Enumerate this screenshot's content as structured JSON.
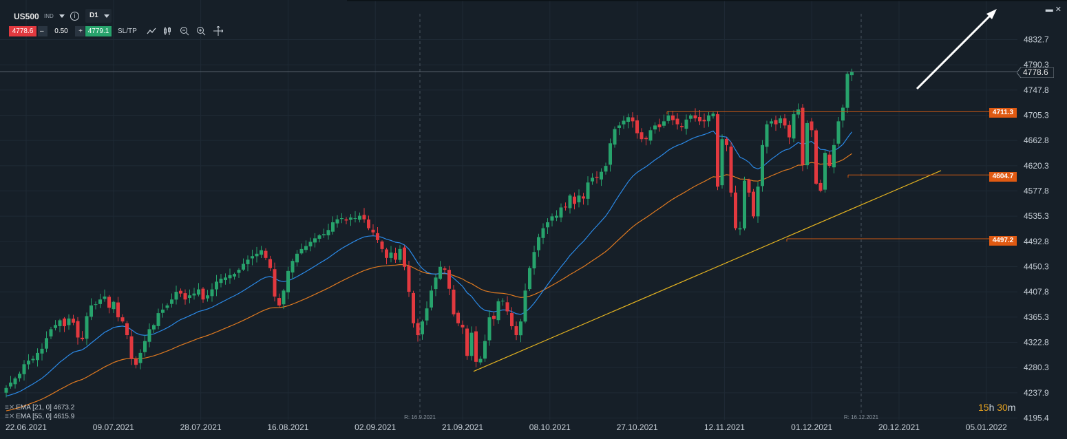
{
  "toolbar": {
    "symbol": "US500",
    "market": "IND",
    "info_icon": "info-icon",
    "timeframe": "D1",
    "sell_price": "4778.6",
    "minus": "–",
    "quantity": "0.50",
    "plus": "+",
    "buy_price": "4779.1",
    "sltp_label": "SL/TP",
    "tools": [
      "line-chart-icon",
      "candles-icon",
      "zoom-out-icon",
      "zoom-in-icon",
      "crosshair-icon"
    ]
  },
  "window_controls": {
    "collapse": "▬",
    "close": "✕"
  },
  "current_price": "4778.6",
  "levels": [
    {
      "label": "4711.3",
      "value": 4711.3
    },
    {
      "label": "4604.7",
      "value": 4604.7
    },
    {
      "label": "4497.2",
      "value": 4497.2
    }
  ],
  "indicators": [
    {
      "label": "EMA [21, 0] 4673.2",
      "color": "#2b8ae8"
    },
    {
      "label": "EMA [55, 0] 4615.9",
      "color": "#e07a20"
    }
  ],
  "countdown": {
    "hours": "15",
    "h": "h",
    "minutes": "30",
    "m": "m"
  },
  "chart_data": {
    "type": "candlestick",
    "symbol": "US500",
    "ylim": [
      4195.4,
      4832.7
    ],
    "y_ticks": [
      "4832.7",
      "4790.3",
      "4747.8",
      "4705.3",
      "4662.8",
      "4620.3",
      "4577.8",
      "4535.3",
      "4492.8",
      "4450.3",
      "4407.8",
      "4365.3",
      "4322.8",
      "4280.3",
      "4237.9",
      "4195.4"
    ],
    "x_ticks": [
      "22.06.2021",
      "09.07.2021",
      "28.07.2021",
      "16.08.2021",
      "02.09.2021",
      "21.09.2021",
      "08.10.2021",
      "27.10.2021",
      "12.11.2021",
      "01.12.2021",
      "20.12.2021",
      "05.01.2022"
    ],
    "session_markers": [
      "R: 16.9.2021",
      "R: 16.12.2021"
    ],
    "close": [
      4246,
      4255,
      4262,
      4270,
      4286,
      4292,
      4295,
      4305,
      4312,
      4330,
      4345,
      4352,
      4360,
      4350,
      4363,
      4356,
      4331,
      4328,
      4367,
      4385,
      4387,
      4395,
      4400,
      4381,
      4391,
      4365,
      4358,
      4335,
      4295,
      4285,
      4305,
      4325,
      4345,
      4352,
      4372,
      4378,
      4385,
      4395,
      4408,
      4405,
      4395,
      4402,
      4405,
      4412,
      4395,
      4402,
      4412,
      4425,
      4430,
      4432,
      4436,
      4438,
      4445,
      4455,
      4462,
      4468,
      4472,
      4478,
      4465,
      4448,
      4400,
      4385,
      4410,
      4443,
      4460,
      4472,
      4480,
      4485,
      4492,
      4498,
      4503,
      4505,
      4512,
      4525,
      4530,
      4532,
      4528,
      4533,
      4532,
      4536,
      4530,
      4515,
      4508,
      4495,
      4480,
      4465,
      4474,
      4462,
      4480,
      4450,
      4408,
      4355,
      4335,
      4358,
      4380,
      4410,
      4432,
      4450,
      4445,
      4413,
      4370,
      4355,
      4348,
      4300,
      4339,
      4290,
      4295,
      4325,
      4365,
      4362,
      4392,
      4393,
      4375,
      4350,
      4335,
      4358,
      4410,
      4448,
      4475,
      4500,
      4515,
      4525,
      4535,
      4536,
      4550,
      4550,
      4570,
      4556,
      4570,
      4565,
      4592,
      4600,
      4600,
      4610,
      4620,
      4658,
      4682,
      4688,
      4696,
      4702,
      4695,
      4675,
      4665,
      4665,
      4680,
      4688,
      4685,
      4695,
      4705,
      4697,
      4690,
      4685,
      4698,
      4705,
      4700,
      4695,
      4695,
      4705,
      4708,
      4585,
      4665,
      4655,
      4575,
      4515,
      4515,
      4595,
      4575,
      4535,
      4585,
      4655,
      4690,
      4695,
      4690,
      4700,
      4688,
      4668,
      4707,
      4715,
      4622,
      4692,
      4680,
      4590,
      4578,
      4642,
      4620,
      4655,
      4695,
      4718,
      4775,
      4778
    ]
  }
}
